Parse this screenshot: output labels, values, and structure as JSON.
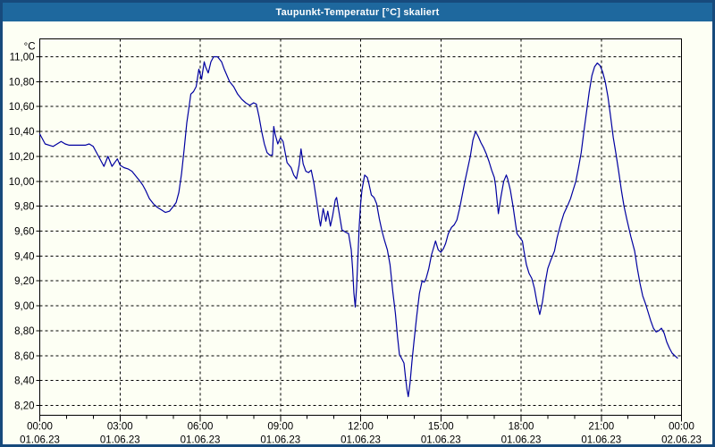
{
  "window": {
    "title": "Taupunkt-Temperatur [°C] skaliert"
  },
  "colors": {
    "titlebar_bg": "#1e689e",
    "frame_border": "#174a7c",
    "content_bg": "#fdfff4",
    "line": "#0000a0",
    "grid": "#000000",
    "text": "#000000",
    "title_text": "#ffffff"
  },
  "chart_data": {
    "type": "line",
    "title": "Taupunkt-Temperatur [°C] skaliert",
    "ylabel": "°C",
    "xlabel": "",
    "grid": "dashed",
    "legend": "none",
    "ylim": [
      8.2,
      11.0
    ],
    "xlim_hours": [
      0,
      24
    ],
    "x_minor_tick_hours": 1,
    "y_ticks": [
      {
        "value": 11.0,
        "label": "11,00"
      },
      {
        "value": 10.8,
        "label": "10,80"
      },
      {
        "value": 10.6,
        "label": "10,60"
      },
      {
        "value": 10.4,
        "label": "10,40"
      },
      {
        "value": 10.2,
        "label": "10,20"
      },
      {
        "value": 10.0,
        "label": "10,00"
      },
      {
        "value": 9.8,
        "label": "9,80"
      },
      {
        "value": 9.6,
        "label": "9,60"
      },
      {
        "value": 9.4,
        "label": "9,40"
      },
      {
        "value": 9.2,
        "label": "9,20"
      },
      {
        "value": 9.0,
        "label": "9,00"
      },
      {
        "value": 8.8,
        "label": "8,80"
      },
      {
        "value": 8.6,
        "label": "8,60"
      },
      {
        "value": 8.4,
        "label": "8,40"
      },
      {
        "value": 8.2,
        "label": "8,20"
      }
    ],
    "x_ticks": [
      {
        "hour": 0,
        "time": "00:00",
        "date": "01.06.23"
      },
      {
        "hour": 3,
        "time": "03:00",
        "date": "01.06.23"
      },
      {
        "hour": 6,
        "time": "06:00",
        "date": "01.06.23"
      },
      {
        "hour": 9,
        "time": "09:00",
        "date": "01.06.23"
      },
      {
        "hour": 12,
        "time": "12:00",
        "date": "01.06.23"
      },
      {
        "hour": 15,
        "time": "15:00",
        "date": "01.06.23"
      },
      {
        "hour": 18,
        "time": "18:00",
        "date": "01.06.23"
      },
      {
        "hour": 21,
        "time": "21:00",
        "date": "01.06.23"
      },
      {
        "hour": 24,
        "time": "00:00",
        "date": "02.06.23"
      }
    ],
    "series": [
      {
        "name": "Taupunkt-Temperatur",
        "points": [
          [
            0.0,
            10.38
          ],
          [
            0.1,
            10.34
          ],
          [
            0.2,
            10.3
          ],
          [
            0.35,
            10.29
          ],
          [
            0.5,
            10.28
          ],
          [
            0.65,
            10.3
          ],
          [
            0.8,
            10.32
          ],
          [
            0.95,
            10.3
          ],
          [
            1.1,
            10.29
          ],
          [
            1.3,
            10.29
          ],
          [
            1.5,
            10.29
          ],
          [
            1.7,
            10.29
          ],
          [
            1.85,
            10.3
          ],
          [
            2.0,
            10.28
          ],
          [
            2.15,
            10.22
          ],
          [
            2.3,
            10.16
          ],
          [
            2.4,
            10.12
          ],
          [
            2.55,
            10.2
          ],
          [
            2.7,
            10.12
          ],
          [
            2.9,
            10.18
          ],
          [
            3.0,
            10.13
          ],
          [
            3.15,
            10.11
          ],
          [
            3.3,
            10.1
          ],
          [
            3.45,
            10.08
          ],
          [
            3.6,
            10.04
          ],
          [
            3.75,
            10.0
          ],
          [
            3.85,
            9.97
          ],
          [
            3.95,
            9.93
          ],
          [
            4.1,
            9.86
          ],
          [
            4.25,
            9.82
          ],
          [
            4.4,
            9.79
          ],
          [
            4.55,
            9.77
          ],
          [
            4.7,
            9.75
          ],
          [
            4.85,
            9.76
          ],
          [
            5.0,
            9.8
          ],
          [
            5.1,
            9.83
          ],
          [
            5.2,
            9.91
          ],
          [
            5.3,
            10.06
          ],
          [
            5.4,
            10.26
          ],
          [
            5.5,
            10.47
          ],
          [
            5.6,
            10.62
          ],
          [
            5.65,
            10.7
          ],
          [
            5.75,
            10.72
          ],
          [
            5.85,
            10.76
          ],
          [
            5.95,
            10.9
          ],
          [
            6.0,
            10.86
          ],
          [
            6.05,
            10.82
          ],
          [
            6.15,
            10.96
          ],
          [
            6.2,
            10.92
          ],
          [
            6.3,
            10.87
          ],
          [
            6.4,
            10.96
          ],
          [
            6.5,
            11.0
          ],
          [
            6.65,
            11.0
          ],
          [
            6.8,
            10.96
          ],
          [
            6.9,
            10.9
          ],
          [
            7.0,
            10.85
          ],
          [
            7.1,
            10.8
          ],
          [
            7.25,
            10.76
          ],
          [
            7.4,
            10.7
          ],
          [
            7.55,
            10.66
          ],
          [
            7.7,
            10.63
          ],
          [
            7.85,
            10.61
          ],
          [
            8.0,
            10.63
          ],
          [
            8.1,
            10.62
          ],
          [
            8.2,
            10.52
          ],
          [
            8.3,
            10.4
          ],
          [
            8.4,
            10.3
          ],
          [
            8.5,
            10.23
          ],
          [
            8.6,
            10.21
          ],
          [
            8.7,
            10.21
          ],
          [
            8.75,
            10.44
          ],
          [
            8.8,
            10.38
          ],
          [
            8.9,
            10.3
          ],
          [
            9.0,
            10.35
          ],
          [
            9.1,
            10.32
          ],
          [
            9.25,
            10.15
          ],
          [
            9.4,
            10.11
          ],
          [
            9.5,
            10.05
          ],
          [
            9.6,
            10.02
          ],
          [
            9.7,
            10.13
          ],
          [
            9.77,
            10.26
          ],
          [
            9.85,
            10.14
          ],
          [
            9.95,
            10.08
          ],
          [
            10.05,
            10.07
          ],
          [
            10.15,
            10.09
          ],
          [
            10.25,
            9.99
          ],
          [
            10.35,
            9.85
          ],
          [
            10.45,
            9.7
          ],
          [
            10.5,
            9.64
          ],
          [
            10.6,
            9.78
          ],
          [
            10.7,
            9.68
          ],
          [
            10.77,
            9.76
          ],
          [
            10.87,
            9.64
          ],
          [
            10.95,
            9.72
          ],
          [
            11.05,
            9.85
          ],
          [
            11.1,
            9.87
          ],
          [
            11.2,
            9.74
          ],
          [
            11.3,
            9.61
          ],
          [
            11.45,
            9.59
          ],
          [
            11.55,
            9.58
          ],
          [
            11.65,
            9.45
          ],
          [
            11.7,
            9.3
          ],
          [
            11.75,
            9.1
          ],
          [
            11.8,
            8.99
          ],
          [
            11.85,
            9.15
          ],
          [
            11.9,
            9.4
          ],
          [
            11.95,
            9.65
          ],
          [
            12.0,
            9.82
          ],
          [
            12.05,
            9.93
          ],
          [
            12.15,
            10.05
          ],
          [
            12.25,
            10.03
          ],
          [
            12.3,
            9.99
          ],
          [
            12.4,
            9.89
          ],
          [
            12.5,
            9.87
          ],
          [
            12.6,
            9.82
          ],
          [
            12.7,
            9.7
          ],
          [
            12.8,
            9.6
          ],
          [
            12.9,
            9.52
          ],
          [
            13.0,
            9.45
          ],
          [
            13.1,
            9.33
          ],
          [
            13.2,
            9.12
          ],
          [
            13.3,
            8.94
          ],
          [
            13.38,
            8.75
          ],
          [
            13.45,
            8.61
          ],
          [
            13.55,
            8.57
          ],
          [
            13.62,
            8.54
          ],
          [
            13.68,
            8.42
          ],
          [
            13.73,
            8.33
          ],
          [
            13.78,
            8.27
          ],
          [
            13.85,
            8.38
          ],
          [
            13.92,
            8.55
          ],
          [
            14.0,
            8.72
          ],
          [
            14.1,
            8.92
          ],
          [
            14.2,
            9.1
          ],
          [
            14.3,
            9.2
          ],
          [
            14.38,
            9.19
          ],
          [
            14.45,
            9.22
          ],
          [
            14.55,
            9.3
          ],
          [
            14.65,
            9.41
          ],
          [
            14.72,
            9.46
          ],
          [
            14.8,
            9.52
          ],
          [
            14.9,
            9.45
          ],
          [
            15.0,
            9.43
          ],
          [
            15.1,
            9.46
          ],
          [
            15.18,
            9.5
          ],
          [
            15.28,
            9.58
          ],
          [
            15.4,
            9.63
          ],
          [
            15.5,
            9.65
          ],
          [
            15.6,
            9.69
          ],
          [
            15.7,
            9.78
          ],
          [
            15.8,
            9.89
          ],
          [
            15.9,
            10.0
          ],
          [
            16.0,
            10.1
          ],
          [
            16.1,
            10.2
          ],
          [
            16.2,
            10.33
          ],
          [
            16.3,
            10.4
          ],
          [
            16.4,
            10.36
          ],
          [
            16.5,
            10.31
          ],
          [
            16.6,
            10.27
          ],
          [
            16.7,
            10.22
          ],
          [
            16.8,
            10.16
          ],
          [
            16.9,
            10.09
          ],
          [
            17.0,
            10.03
          ],
          [
            17.05,
            9.96
          ],
          [
            17.1,
            9.85
          ],
          [
            17.15,
            9.74
          ],
          [
            17.25,
            9.88
          ],
          [
            17.35,
            10.0
          ],
          [
            17.45,
            10.05
          ],
          [
            17.5,
            10.02
          ],
          [
            17.6,
            9.93
          ],
          [
            17.7,
            9.8
          ],
          [
            17.8,
            9.65
          ],
          [
            17.85,
            9.58
          ],
          [
            17.95,
            9.55
          ],
          [
            18.05,
            9.52
          ],
          [
            18.1,
            9.45
          ],
          [
            18.2,
            9.33
          ],
          [
            18.3,
            9.26
          ],
          [
            18.4,
            9.22
          ],
          [
            18.5,
            9.14
          ],
          [
            18.6,
            9.02
          ],
          [
            18.7,
            8.93
          ],
          [
            18.8,
            9.03
          ],
          [
            18.9,
            9.18
          ],
          [
            19.0,
            9.3
          ],
          [
            19.1,
            9.36
          ],
          [
            19.25,
            9.44
          ],
          [
            19.35,
            9.55
          ],
          [
            19.5,
            9.67
          ],
          [
            19.6,
            9.74
          ],
          [
            19.75,
            9.81
          ],
          [
            19.85,
            9.86
          ],
          [
            19.95,
            9.93
          ],
          [
            20.05,
            10.0
          ],
          [
            20.15,
            10.11
          ],
          [
            20.25,
            10.23
          ],
          [
            20.35,
            10.4
          ],
          [
            20.45,
            10.56
          ],
          [
            20.55,
            10.72
          ],
          [
            20.65,
            10.85
          ],
          [
            20.75,
            10.92
          ],
          [
            20.85,
            10.95
          ],
          [
            20.95,
            10.93
          ],
          [
            21.05,
            10.88
          ],
          [
            21.15,
            10.8
          ],
          [
            21.25,
            10.68
          ],
          [
            21.35,
            10.52
          ],
          [
            21.45,
            10.35
          ],
          [
            21.55,
            10.22
          ],
          [
            21.65,
            10.08
          ],
          [
            21.75,
            9.93
          ],
          [
            21.85,
            9.8
          ],
          [
            21.95,
            9.7
          ],
          [
            22.1,
            9.56
          ],
          [
            22.25,
            9.44
          ],
          [
            22.35,
            9.3
          ],
          [
            22.45,
            9.18
          ],
          [
            22.55,
            9.08
          ],
          [
            22.65,
            9.02
          ],
          [
            22.75,
            8.95
          ],
          [
            22.85,
            8.88
          ],
          [
            22.95,
            8.82
          ],
          [
            23.05,
            8.79
          ],
          [
            23.15,
            8.8
          ],
          [
            23.25,
            8.82
          ],
          [
            23.35,
            8.78
          ],
          [
            23.45,
            8.71
          ],
          [
            23.55,
            8.66
          ],
          [
            23.65,
            8.62
          ],
          [
            23.75,
            8.6
          ],
          [
            23.85,
            8.58
          ]
        ]
      }
    ]
  }
}
